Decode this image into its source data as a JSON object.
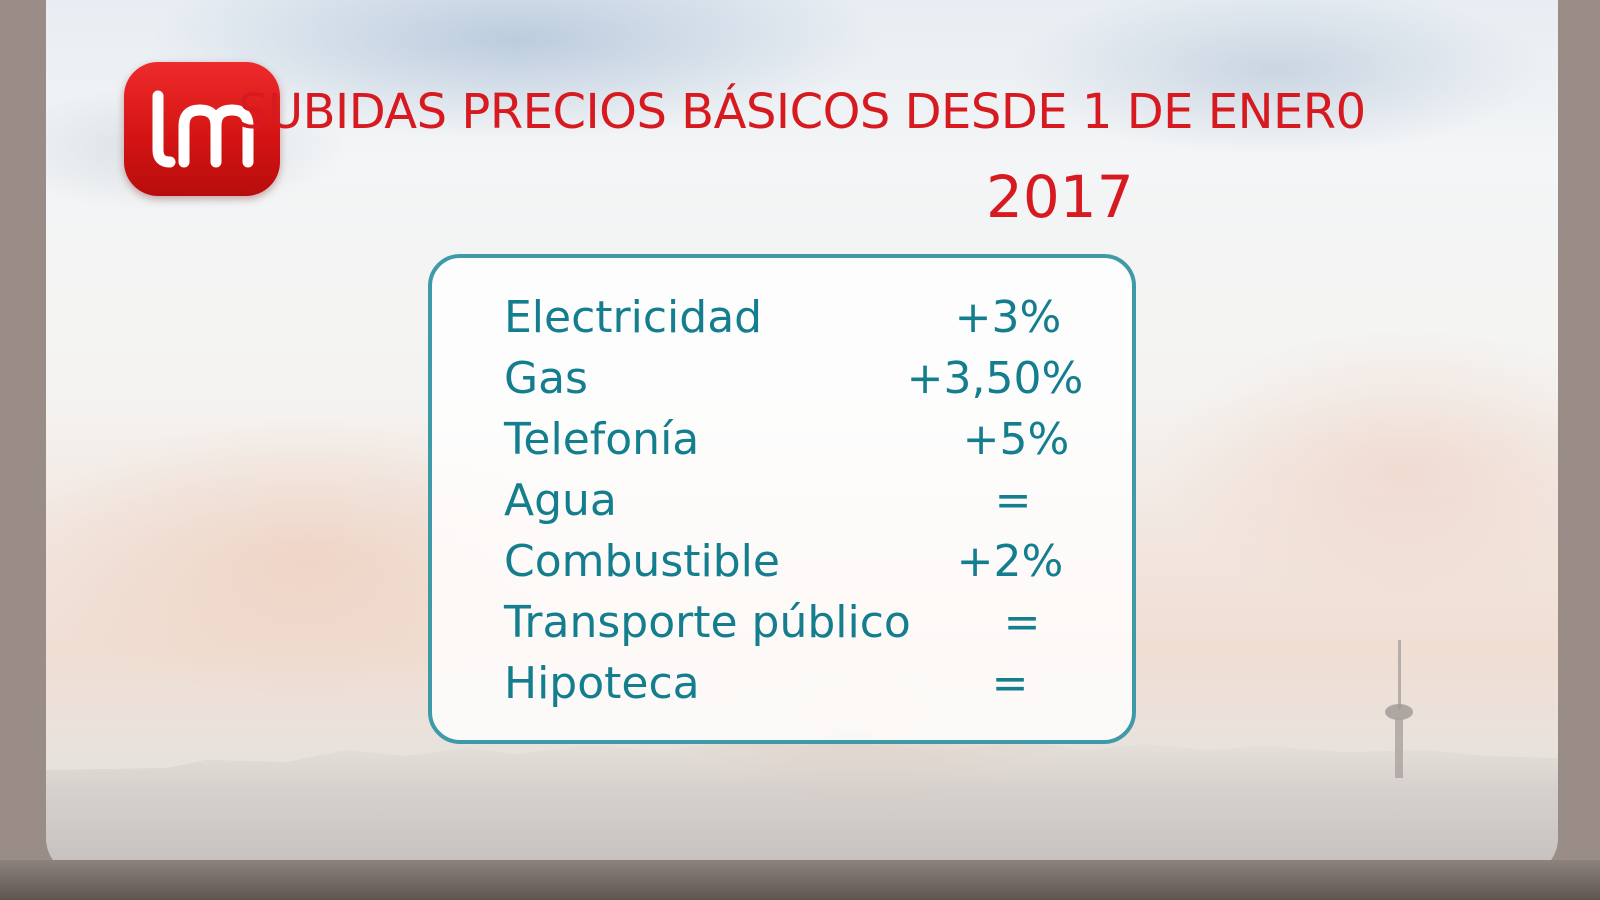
{
  "title": "SUBIDAS PRECIOS BÁSICOS DESDE 1 DE ENER0",
  "year": "2017",
  "brand": {
    "logo": "lm-logo",
    "color": "#d61a1f"
  },
  "accent_color": "#3f9aa8",
  "text_color": "#147e8e",
  "items": [
    {
      "label": "Electricidad",
      "value": "+3%"
    },
    {
      "label": "Gas",
      "value": "+3,50%"
    },
    {
      "label": "Telefonía",
      "value": "+5%"
    },
    {
      "label": "Agua",
      "value": "="
    },
    {
      "label": "Combustible",
      "value": "+2%"
    },
    {
      "label": "Transporte público",
      "value": "="
    },
    {
      "label": "Hipoteca",
      "value": "="
    }
  ]
}
